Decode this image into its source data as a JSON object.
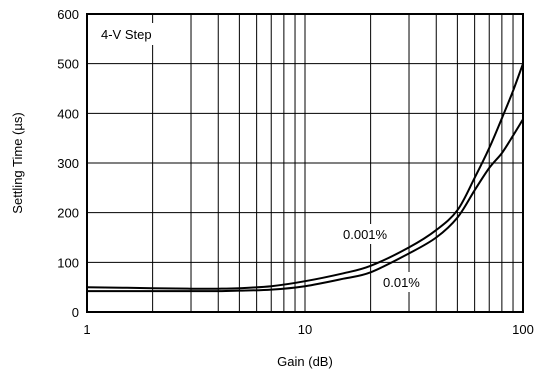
{
  "chart_data": {
    "type": "line",
    "title": "",
    "xlabel": "Gain (dB)",
    "ylabel": "Settling Time (µs)",
    "x_scale": "log",
    "xlim": [
      1,
      100
    ],
    "ylim": [
      0,
      600
    ],
    "grid": true,
    "x_tick_labels": [
      "1",
      "10",
      "100"
    ],
    "x_tick_values": [
      1,
      10,
      100
    ],
    "y_tick_labels": [
      "0",
      "100",
      "200",
      "300",
      "400",
      "500",
      "600"
    ],
    "y_tick_values": [
      0,
      100,
      200,
      300,
      400,
      500,
      600
    ],
    "annotations": [
      {
        "id": "box",
        "text": "4-V Step"
      },
      {
        "id": "s1",
        "text": "0.001%"
      },
      {
        "id": "s2",
        "text": "0.01%"
      }
    ],
    "series": [
      {
        "name": "0.001%",
        "x": [
          1,
          2,
          3,
          4,
          5,
          7,
          10,
          15,
          20,
          30,
          40,
          50,
          60,
          70,
          80,
          90,
          100
        ],
        "y": [
          50,
          48,
          47,
          47,
          48,
          52,
          62,
          78,
          93,
          130,
          165,
          205,
          270,
          330,
          390,
          445,
          500
        ]
      },
      {
        "name": "0.01%",
        "x": [
          1,
          2,
          3,
          4,
          5,
          7,
          10,
          15,
          20,
          30,
          40,
          50,
          60,
          70,
          80,
          90,
          100
        ],
        "y": [
          42,
          42,
          42,
          42,
          43,
          45,
          52,
          67,
          80,
          118,
          150,
          190,
          245,
          290,
          320,
          355,
          388
        ]
      }
    ]
  }
}
